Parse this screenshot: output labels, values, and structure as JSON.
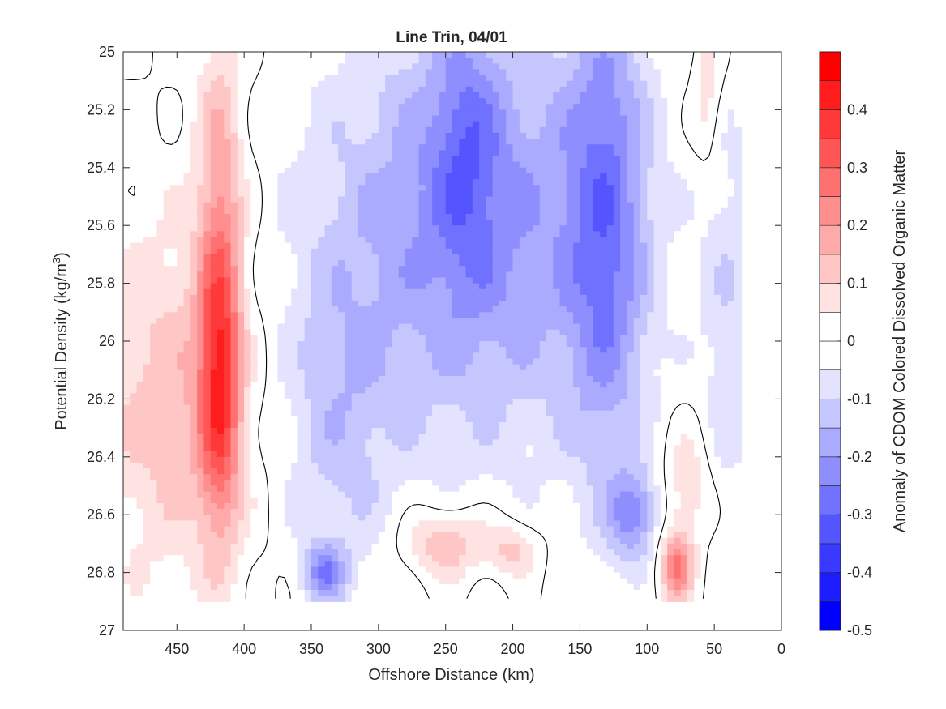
{
  "chart_data": {
    "type": "heatmap",
    "subtype": "filled-contour",
    "title": "Line Trin, 04/01",
    "xlabel": "Offshore Distance (km)",
    "ylabel_main": "Potential Density (kg/m",
    "ylabel_sup": "3",
    "ylabel_close": ")",
    "colorbar_label": "Anomaly of CDOM Colored Dissolved Organic Matter",
    "xlim": [
      490,
      0
    ],
    "x_reversed": true,
    "ylim": [
      25,
      27
    ],
    "y_reversed": true,
    "xticks": [
      450,
      400,
      350,
      300,
      250,
      200,
      150,
      100,
      50,
      0
    ],
    "xtick_labels": [
      "450",
      "400",
      "350",
      "300",
      "250",
      "200",
      "150",
      "100",
      "50",
      "0"
    ],
    "yticks": [
      25,
      25.2,
      25.4,
      25.6,
      25.8,
      26,
      26.2,
      26.4,
      26.6,
      26.8,
      27
    ],
    "ytick_labels": [
      "25",
      "25.2",
      "25.4",
      "25.6",
      "25.8",
      "26",
      "26.2",
      "26.4",
      "26.6",
      "26.8",
      "27"
    ],
    "colorbar_range": [
      -0.5,
      0.5
    ],
    "colorbar_ticks": [
      0.4,
      0.3,
      0.2,
      0.1,
      0,
      -0.1,
      -0.2,
      -0.3,
      -0.4,
      -0.5
    ],
    "colorbar_tick_labels": [
      "0.4",
      "0.3",
      "0.2",
      "0.1",
      "0",
      "-0.1",
      "-0.2",
      "-0.3",
      "-0.4",
      "-0.5"
    ],
    "contour_step": 0.05,
    "zero_contour": true,
    "colormap": "blue-white-red",
    "colors": {
      "negative": "#0000ff",
      "zero": "#ffffff",
      "positive": "#ff0000",
      "contour_line": "#000000"
    },
    "data_extent": {
      "x_max_km": 490,
      "x_min_km": 30,
      "density_max": 26.9
    },
    "x_samples": [
      490,
      475,
      460,
      445,
      430,
      420,
      410,
      400,
      390,
      380,
      370,
      355,
      340,
      325,
      310,
      295,
      280,
      265,
      250,
      235,
      220,
      205,
      190,
      175,
      160,
      145,
      130,
      115,
      100,
      90,
      80,
      70,
      60,
      50,
      40,
      30
    ],
    "y_samples": [
      25.0,
      25.1,
      25.2,
      25.3,
      25.4,
      25.5,
      25.6,
      25.7,
      25.8,
      25.9,
      26.0,
      26.1,
      26.2,
      26.3,
      26.4,
      26.5,
      26.6,
      26.7,
      26.8,
      26.9
    ],
    "features": [
      {
        "desc": "offshore positive band",
        "x": [
          490,
          400
        ],
        "y": [
          25.3,
          26.8
        ],
        "value": 0.1
      },
      {
        "desc": "core maximum",
        "x": 420,
        "y": 26.1,
        "value": 0.47
      },
      {
        "desc": "negative core",
        "x": 130,
        "y": 25.6,
        "value": -0.4
      },
      {
        "desc": "negative core",
        "x": 235,
        "y": 25.4,
        "value": -0.33
      },
      {
        "desc": "deep negative spot",
        "x": 110,
        "y": 26.6,
        "value": -0.35
      },
      {
        "desc": "deep negative spot",
        "x": 340,
        "y": 26.8,
        "value": -0.3
      },
      {
        "desc": "deep positive spot",
        "x": 78,
        "y": 26.8,
        "value": 0.25
      },
      {
        "desc": "deep positive patch",
        "x": 250,
        "y": 26.7,
        "value": 0.12
      }
    ]
  }
}
